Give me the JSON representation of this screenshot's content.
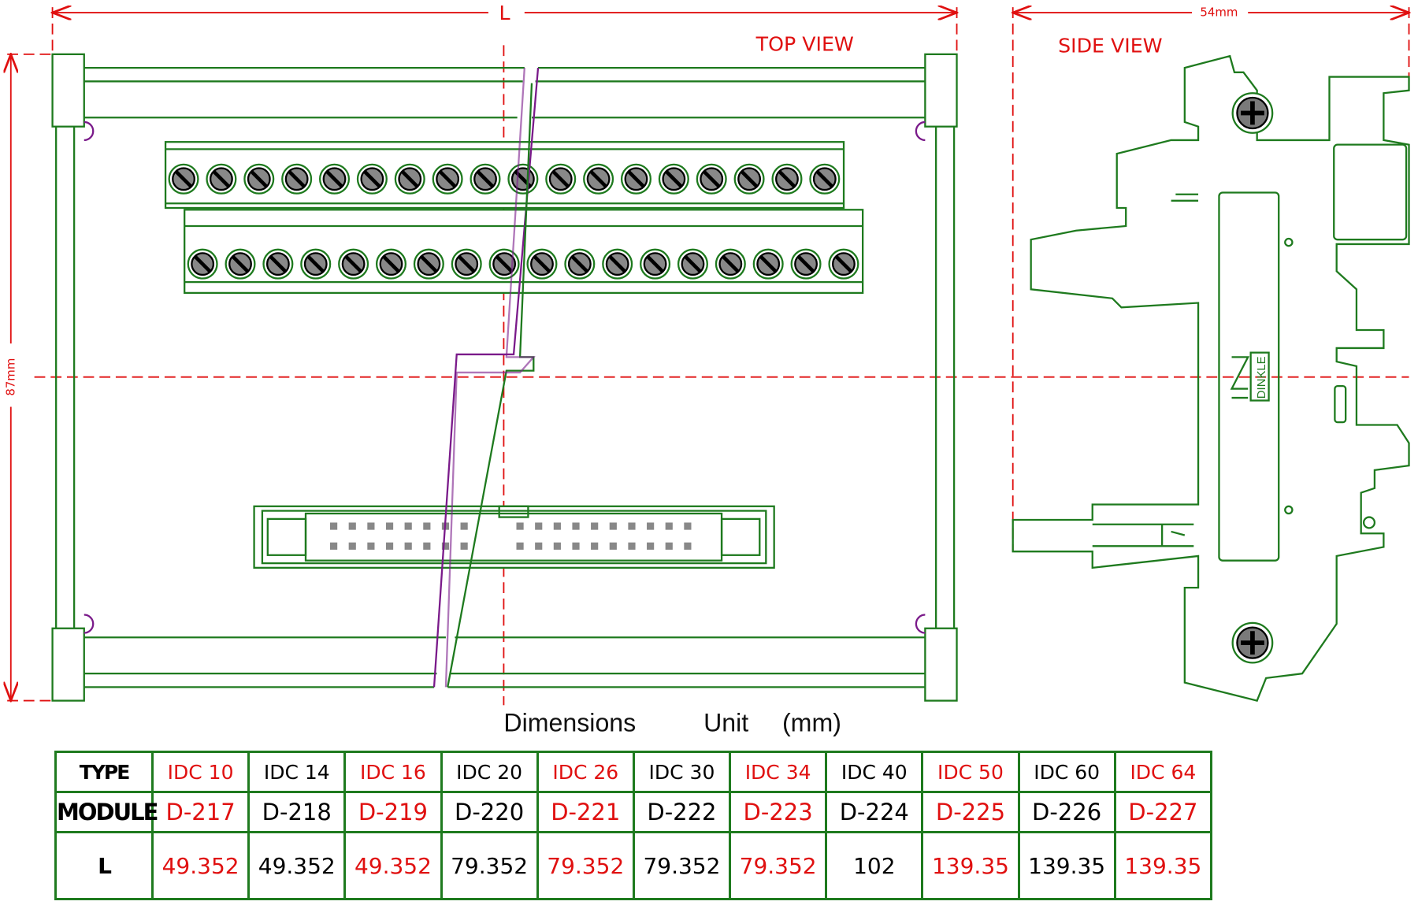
{
  "top_view": {
    "label": "TOP VIEW",
    "dimension_label": "L",
    "height_label": "87mm"
  },
  "side_view": {
    "label": "SIDE VIEW",
    "width_label": "54mm",
    "logo_text": "DINKLE"
  },
  "caption": {
    "title": "Dimensions",
    "unit_label": "Unit",
    "unit": "(mm)"
  },
  "colors": {
    "outline": "#1e7a1e",
    "dimension": "#e01010",
    "break_line": "#7a1a8a"
  },
  "table": {
    "row_headers": [
      "TYPE",
      "MODULE",
      "L"
    ],
    "columns": [
      {
        "type": "IDC 10",
        "module": "D-217",
        "L": "49.352",
        "color": "red"
      },
      {
        "type": "IDC 14",
        "module": "D-218",
        "L": "49.352",
        "color": "black"
      },
      {
        "type": "IDC 16",
        "module": "D-219",
        "L": "49.352",
        "color": "red"
      },
      {
        "type": "IDC 20",
        "module": "D-220",
        "L": "79.352",
        "color": "black"
      },
      {
        "type": "IDC 26",
        "module": "D-221",
        "L": "79.352",
        "color": "red"
      },
      {
        "type": "IDC 30",
        "module": "D-222",
        "L": "79.352",
        "color": "black"
      },
      {
        "type": "IDC 34",
        "module": "D-223",
        "L": "79.352",
        "color": "red"
      },
      {
        "type": "IDC 40",
        "module": "D-224",
        "L": "102",
        "color": "black"
      },
      {
        "type": "IDC 50",
        "module": "D-225",
        "L": "139.35",
        "color": "red"
      },
      {
        "type": "IDC 60",
        "module": "D-226",
        "L": "139.35",
        "color": "black"
      },
      {
        "type": "IDC 64",
        "module": "D-227",
        "L": "139.35",
        "color": "red"
      }
    ]
  }
}
